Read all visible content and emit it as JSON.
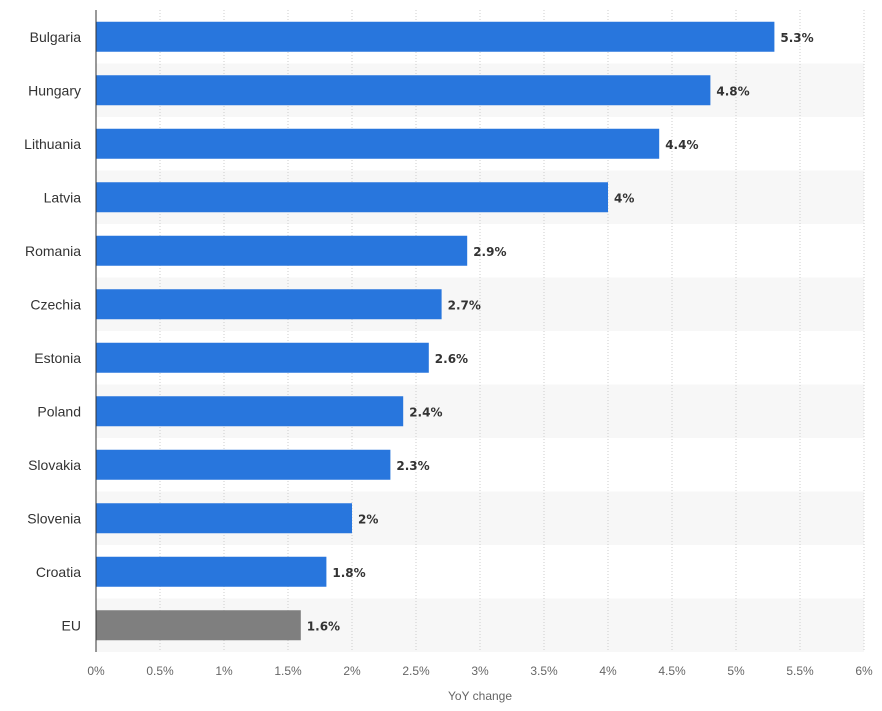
{
  "chart_data": {
    "type": "bar",
    "orientation": "horizontal",
    "categories": [
      "Bulgaria",
      "Hungary",
      "Lithuania",
      "Latvia",
      "Romania",
      "Czechia",
      "Estonia",
      "Poland",
      "Slovakia",
      "Slovenia",
      "Croatia",
      "EU"
    ],
    "values": [
      5.3,
      4.8,
      4.4,
      4.0,
      2.9,
      2.7,
      2.6,
      2.4,
      2.3,
      2.0,
      1.8,
      1.6
    ],
    "value_labels": [
      "5.3%",
      "4.8%",
      "4.4%",
      "4%",
      "2.9%",
      "2.7%",
      "2.6%",
      "2.4%",
      "2.3%",
      "2%",
      "1.8%",
      "1.6%"
    ],
    "xlabel": "YoY change",
    "ylabel": "",
    "xlim": [
      0,
      6
    ],
    "x_ticks": [
      0,
      0.5,
      1,
      1.5,
      2,
      2.5,
      3,
      3.5,
      4,
      4.5,
      5,
      5.5,
      6
    ],
    "x_tick_labels": [
      "0%",
      "0.5%",
      "1%",
      "1.5%",
      "2%",
      "2.5%",
      "3%",
      "3.5%",
      "4%",
      "4.5%",
      "5%",
      "5.5%",
      "6%"
    ],
    "grid": true,
    "legend": "none",
    "colors": {
      "bar": "#2876dd",
      "highlight": "#7f7f7f",
      "stripe": "#f7f7f7",
      "grid": "#cccccc"
    },
    "highlight_category": "EU"
  }
}
